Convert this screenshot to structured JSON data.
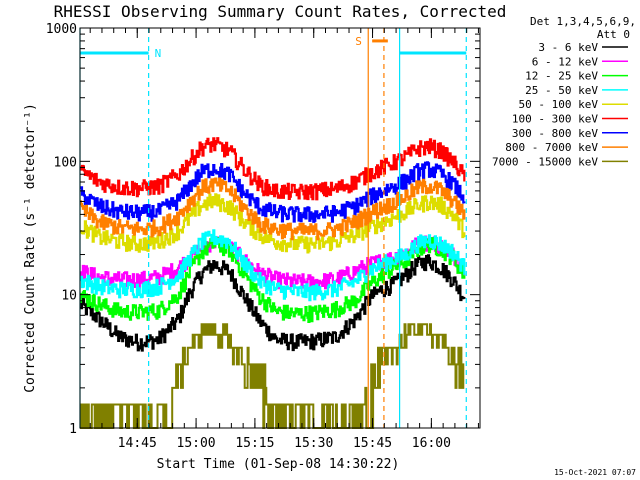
{
  "chart_data": {
    "type": "line",
    "title": "RHESSI Observing Summary Count Rates, Corrected",
    "xlabel": "Start Time (01-Sep-08 14:30:22)",
    "ylabel": "Corrected Count Rate (s⁻¹ detector⁻¹)",
    "yscale": "log",
    "ylim": [
      1,
      1000
    ],
    "xlim_minutes": [
      0,
      102
    ],
    "x_unit": "minutes after 14:30:22",
    "x_ticks": [
      {
        "label": "14:45",
        "value": 14.6
      },
      {
        "label": "15:00",
        "value": 29.6
      },
      {
        "label": "15:15",
        "value": 44.6
      },
      {
        "label": "15:30",
        "value": 59.6
      },
      {
        "label": "15:45",
        "value": 74.6
      },
      {
        "label": "16:00",
        "value": 89.6
      }
    ],
    "y_ticks": [
      {
        "label": "1",
        "value": 1
      },
      {
        "label": "10",
        "value": 10
      },
      {
        "label": "100",
        "value": 100
      },
      {
        "label": "1000",
        "value": 1000
      }
    ],
    "legend": {
      "placement": "top-right",
      "header_lines": [
        "Det 1,3,4,5,6,9,",
        "Att 0"
      ]
    },
    "annotations": [
      {
        "label": "N",
        "color": "#00e5ff"
      },
      {
        "label": "S",
        "color": "#ff7f00"
      }
    ],
    "intervals": {
      "night": [
        {
          "start": 0,
          "end": 17.5,
          "bar_level": 650
        },
        {
          "start": 81.5,
          "end": 98.5,
          "bar_level": 650
        }
      ],
      "saa_start": 73.5,
      "saa_end": 77.5,
      "saa_bar": {
        "start": 74.5,
        "end": 78.5,
        "level": 800
      }
    },
    "series": [
      {
        "name": "3 - 6 keV",
        "color": "#000000",
        "x": [
          0,
          5,
          10,
          15,
          20,
          25,
          28,
          31,
          34,
          38,
          42,
          46,
          50,
          55,
          60,
          65,
          70,
          74,
          77,
          80,
          83,
          86,
          89,
          92,
          95,
          98
        ],
        "y": [
          8.5,
          6.5,
          4.8,
          4.4,
          4.6,
          6.5,
          10.5,
          14.5,
          17,
          15,
          9.5,
          6.2,
          4.6,
          4.4,
          4.5,
          4.8,
          6.5,
          9.5,
          11,
          12,
          14,
          17,
          18,
          16,
          13,
          9.5
        ]
      },
      {
        "name": "6 - 12 keV",
        "color": "#ff00ff",
        "x": [
          0,
          5,
          10,
          15,
          20,
          25,
          28,
          31,
          34,
          38,
          42,
          46,
          50,
          55,
          60,
          65,
          70,
          74,
          77,
          80,
          83,
          86,
          89,
          92,
          95,
          98
        ],
        "y": [
          15,
          13.5,
          13,
          13,
          13.5,
          16,
          19,
          23,
          25,
          23,
          18,
          14.5,
          13,
          12.5,
          12.5,
          13,
          15,
          17,
          18,
          19,
          21,
          24,
          25,
          23,
          20,
          16
        ]
      },
      {
        "name": "12 - 25 keV",
        "color": "#00ff00",
        "x": [
          0,
          5,
          10,
          15,
          20,
          25,
          28,
          31,
          34,
          38,
          42,
          46,
          50,
          55,
          60,
          65,
          70,
          74,
          77,
          80,
          83,
          86,
          89,
          92,
          95,
          98
        ],
        "y": [
          10,
          8.5,
          7.5,
          7.4,
          7.6,
          10,
          15,
          21,
          24,
          22,
          14,
          9.5,
          7.5,
          7.2,
          7.3,
          7.8,
          9,
          12,
          14,
          16,
          18,
          22,
          24,
          22,
          19,
          14
        ]
      },
      {
        "name": "25 - 50 keV",
        "color": "#00ffff",
        "x": [
          0,
          5,
          10,
          15,
          20,
          25,
          28,
          31,
          34,
          38,
          42,
          46,
          50,
          55,
          60,
          65,
          70,
          74,
          77,
          80,
          83,
          86,
          89,
          92,
          95,
          98
        ],
        "y": [
          13,
          11.5,
          11,
          11,
          11.5,
          14,
          19,
          25,
          27,
          25,
          17,
          12.5,
          11,
          10.5,
          10.5,
          11,
          12.5,
          15.5,
          17,
          18.5,
          20,
          24,
          26,
          24,
          21,
          16
        ]
      },
      {
        "name": "50 - 100 keV",
        "color": "#dddd00",
        "x": [
          0,
          5,
          10,
          15,
          20,
          25,
          28,
          31,
          34,
          38,
          42,
          46,
          50,
          55,
          60,
          65,
          70,
          74,
          77,
          80,
          83,
          86,
          89,
          92,
          95,
          98
        ],
        "y": [
          33,
          27,
          25,
          24,
          25,
          30,
          38,
          47,
          51,
          46,
          35,
          28,
          25,
          24,
          24,
          25,
          28,
          32,
          35,
          38,
          42,
          47,
          50,
          47,
          40,
          30
        ]
      },
      {
        "name": "100 - 300 keV",
        "color": "#ff0000",
        "x": [
          0,
          5,
          10,
          15,
          20,
          25,
          28,
          31,
          34,
          38,
          42,
          46,
          50,
          55,
          60,
          65,
          70,
          74,
          77,
          80,
          83,
          86,
          89,
          92,
          95,
          98
        ],
        "y": [
          85,
          70,
          64,
          63,
          65,
          80,
          102,
          128,
          135,
          120,
          86,
          66,
          60,
          59,
          60,
          62,
          70,
          82,
          90,
          98,
          108,
          125,
          130,
          120,
          100,
          78
        ]
      },
      {
        "name": "300 - 800 keV",
        "color": "#0000ff",
        "x": [
          0,
          5,
          10,
          15,
          20,
          25,
          28,
          31,
          34,
          38,
          42,
          46,
          50,
          55,
          60,
          65,
          70,
          74,
          77,
          80,
          83,
          86,
          89,
          92,
          95,
          98
        ],
        "y": [
          57,
          46,
          42,
          41,
          42,
          51,
          66,
          83,
          90,
          80,
          57,
          45,
          41,
          40,
          40,
          41,
          46,
          54,
          60,
          65,
          72,
          84,
          88,
          81,
          68,
          53
        ]
      },
      {
        "name": "800 - 7000 keV",
        "color": "#ff7f00",
        "x": [
          0,
          5,
          10,
          15,
          20,
          25,
          28,
          31,
          34,
          38,
          42,
          46,
          50,
          55,
          60,
          65,
          70,
          74,
          77,
          80,
          83,
          86,
          89,
          92,
          95,
          98
        ],
        "y": [
          44,
          35,
          32,
          31,
          32,
          39,
          50,
          63,
          68,
          61,
          44,
          34,
          31,
          30,
          30,
          31,
          35,
          41,
          45,
          49,
          55,
          63,
          66,
          61,
          51,
          40
        ]
      },
      {
        "name": "7000 - 15000 keV",
        "color": "#808000",
        "x": [
          0,
          5,
          10,
          15,
          20,
          25,
          28,
          31,
          34,
          38,
          42,
          46,
          50,
          55,
          60,
          65,
          70,
          74,
          77,
          80,
          83,
          86,
          89,
          92,
          95,
          98
        ],
        "y": [
          1.5,
          1,
          1,
          1,
          1,
          2.5,
          4,
          5.5,
          5.5,
          4.5,
          3,
          2,
          1,
          1,
          1,
          1,
          1,
          2,
          3,
          4,
          5,
          5.5,
          5.5,
          4.5,
          3.5,
          2.5
        ]
      }
    ]
  },
  "footer_timestamp": "15-Oct-2021 07:07"
}
